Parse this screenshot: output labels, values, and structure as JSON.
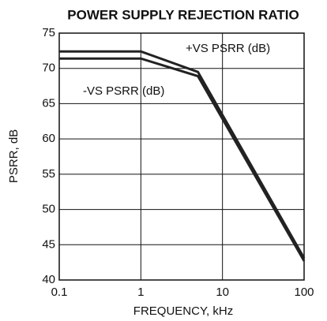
{
  "chart_data": {
    "type": "line",
    "title": "POWER SUPPLY REJECTION RATIO",
    "x_label": "FREQUENCY, kHz",
    "y_label": "PSRR, dB",
    "x": [
      0.1,
      1,
      5,
      100
    ],
    "series": [
      {
        "name": "+VS PSRR (dB)",
        "color": "#222222",
        "values": [
          72.4,
          72.4,
          69.5,
          43.1
        ]
      },
      {
        "name": "-VS PSRR (dB)",
        "color": "#222222",
        "values": [
          71.4,
          71.4,
          68.9,
          42.7
        ]
      }
    ],
    "xlim": [
      0.1,
      100
    ],
    "xticks": [
      0.1,
      1,
      10,
      100
    ],
    "xscale": "log",
    "ylim": [
      40,
      75
    ],
    "yticks": [
      40,
      45,
      50,
      55,
      60,
      65,
      70,
      75
    ],
    "grid": true
  }
}
